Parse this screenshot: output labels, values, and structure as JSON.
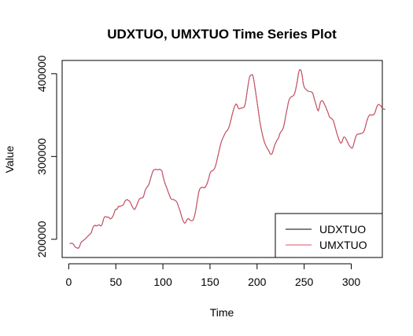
{
  "chart_data": {
    "type": "line",
    "title": "UDXTUO, UMXTUO Time Series Plot",
    "xlabel": "Time",
    "ylabel": "Value",
    "xlim": [
      -7,
      333
    ],
    "ylim": [
      178000,
      416000
    ],
    "xticks": [
      0,
      50,
      100,
      150,
      200,
      250,
      300
    ],
    "yticks": [
      200000,
      300000,
      400000
    ],
    "grid": false,
    "legend": "bottom-right",
    "x_start": 1,
    "series": [
      {
        "name": "UDXTUO",
        "color": "#000000",
        "values": [
          194500,
          195000,
          195500,
          195000,
          194000,
          192000,
          190500,
          190000,
          189500,
          189000,
          190000,
          193000,
          196000,
          197500,
          198000,
          199000,
          200000,
          201000,
          202000,
          203500,
          204500,
          205500,
          206500,
          208000,
          212000,
          215000,
          216500,
          217000,
          216000,
          216500,
          217000,
          217500,
          217000,
          216000,
          217000,
          220000,
          224500,
          227000,
          227500,
          227000,
          226500,
          227000,
          226000,
          224500,
          225000,
          226000,
          228000,
          231000,
          234500,
          236500,
          236000,
          238000,
          240000,
          239500,
          240000,
          240500,
          241000,
          241500,
          244500,
          246500,
          247500,
          248000,
          247000,
          246500,
          245500,
          243000,
          240500,
          238500,
          236500,
          236000,
          238000,
          240500,
          243500,
          246500,
          248500,
          249500,
          250000,
          250000,
          250500,
          254000,
          258500,
          261000,
          263000,
          264000,
          266000,
          269500,
          273500,
          277500,
          281000,
          283500,
          284000,
          284500,
          284500,
          284000,
          284000,
          284500,
          284500,
          283500,
          282500,
          277000,
          272000,
          268500,
          265000,
          262500,
          259000,
          256000,
          253000,
          250000,
          248500,
          248000,
          248000,
          247500,
          247000,
          246000,
          244500,
          241500,
          238000,
          235000,
          231000,
          227000,
          223500,
          221000,
          219500,
          220000,
          222500,
          224500,
          225000,
          224000,
          223000,
          222500,
          222500,
          223000,
          226000,
          230000,
          236000,
          243000,
          250000,
          256500,
          260500,
          262000,
          262500,
          263000,
          262500,
          262000,
          263000,
          265000,
          267500,
          271000,
          275000,
          279500,
          282000,
          282500,
          283000,
          284000,
          286000,
          289000,
          293500,
          298500,
          303500,
          308500,
          313500,
          317500,
          320500,
          323000,
          325500,
          328000,
          330000,
          331000,
          332500,
          335000,
          338500,
          343000,
          348000,
          352500,
          356500,
          360000,
          362500,
          363500,
          361500,
          358500,
          357500,
          358000,
          358500,
          358500,
          359000,
          359500,
          361500,
          367000,
          375000,
          383000,
          390000,
          396000,
          398000,
          398500,
          399000,
          396000,
          389000,
          381500,
          373500,
          366000,
          358000,
          350000,
          342000,
          335500,
          330000,
          325000,
          320500,
          316500,
          314000,
          311500,
          309500,
          307500,
          305500,
          303000,
          302500,
          303500,
          307000,
          311000,
          314500,
          317000,
          319500,
          321000,
          323000,
          327000,
          329500,
          330500,
          332500,
          335500,
          340000,
          346000,
          352500,
          358000,
          364000,
          368500,
          370500,
          372000,
          372500,
          373000,
          374000,
          376500,
          381000,
          386500,
          393000,
          400500,
          404500,
          405000,
          403000,
          397000,
          388000,
          384000,
          382000,
          381000,
          380000,
          379000,
          378500,
          378500,
          378500,
          377500,
          377000,
          373000,
          368500,
          365000,
          361000,
          357000,
          355000,
          359000,
          364500,
          367000,
          367500,
          366500,
          364500,
          362000,
          359500,
          356500,
          354000,
          350500,
          347500,
          346500,
          346000,
          345000,
          343500,
          339500,
          335000,
          331000,
          327000,
          323500,
          320000,
          317500,
          316000,
          317000,
          320500,
          323500,
          323500,
          322000,
          320000,
          317500,
          315000,
          313000,
          311500,
          310500,
          310000,
          312000,
          316500,
          321000,
          324500,
          326500,
          327000,
          327000,
          327500,
          327500,
          328000,
          328500,
          329500,
          332000,
          336000,
          340500,
          344500,
          347500,
          349500,
          350500,
          350000,
          350000,
          350500,
          350500,
          352500,
          356000,
          359500,
          362000,
          363000,
          362500,
          361500,
          360000,
          358500,
          357500,
          357000,
          357000
        ]
      },
      {
        "name": "UMXTUO",
        "color": "#df536b",
        "values": [
          194500,
          195000,
          195500,
          195000,
          194000,
          192000,
          190500,
          190000,
          189500,
          189000,
          190000,
          193000,
          196000,
          197500,
          198000,
          199000,
          200000,
          201000,
          202000,
          203500,
          204500,
          205500,
          206500,
          208000,
          212000,
          215000,
          216500,
          217000,
          216000,
          216500,
          217000,
          217500,
          217000,
          216000,
          217000,
          220000,
          224500,
          227000,
          227500,
          227000,
          226500,
          227000,
          226000,
          224500,
          225000,
          226000,
          228000,
          231000,
          234500,
          236500,
          236000,
          238000,
          240000,
          239500,
          240000,
          240500,
          241000,
          241500,
          244500,
          246500,
          247500,
          248000,
          247000,
          246500,
          245500,
          243000,
          240500,
          238500,
          236500,
          236000,
          238000,
          240500,
          243500,
          246500,
          248500,
          249500,
          250000,
          250000,
          250500,
          254000,
          258500,
          261000,
          263000,
          264000,
          266000,
          269500,
          273500,
          277500,
          281000,
          283500,
          284000,
          284500,
          284500,
          284000,
          284000,
          284500,
          284500,
          283500,
          282500,
          277000,
          272000,
          268500,
          265000,
          262500,
          259000,
          256000,
          253000,
          250000,
          248500,
          248000,
          248000,
          247500,
          247000,
          246000,
          244500,
          241500,
          238000,
          235000,
          231000,
          227000,
          223500,
          221000,
          219500,
          220000,
          222500,
          224500,
          225000,
          224000,
          223000,
          222500,
          222500,
          223000,
          226000,
          230000,
          236000,
          243000,
          250000,
          256500,
          260500,
          262000,
          262500,
          263000,
          262500,
          262000,
          263000,
          265000,
          267500,
          271000,
          275000,
          279500,
          282000,
          282500,
          283000,
          284000,
          286000,
          289000,
          293500,
          298500,
          303500,
          308500,
          313500,
          317500,
          320500,
          323000,
          325500,
          328000,
          330000,
          331000,
          332500,
          335000,
          338500,
          343000,
          348000,
          352500,
          356500,
          360000,
          362500,
          363500,
          361500,
          358500,
          357500,
          358000,
          358500,
          358500,
          359000,
          359500,
          361500,
          367000,
          375000,
          383000,
          390000,
          396000,
          398000,
          398500,
          399000,
          396000,
          389000,
          381500,
          373500,
          366000,
          358000,
          350000,
          342000,
          335500,
          330000,
          325000,
          320500,
          316500,
          314000,
          311500,
          309500,
          307500,
          305500,
          303000,
          302500,
          303500,
          307000,
          311000,
          314500,
          317000,
          319500,
          321000,
          323000,
          327000,
          329500,
          330500,
          332500,
          335500,
          340000,
          346000,
          352500,
          358000,
          364000,
          368500,
          370500,
          372000,
          372500,
          373000,
          374000,
          376500,
          381000,
          386500,
          393000,
          400500,
          404500,
          405000,
          403000,
          397000,
          388000,
          384000,
          382000,
          381000,
          380000,
          379000,
          378500,
          378500,
          378500,
          377500,
          377000,
          373000,
          368500,
          365000,
          361000,
          357000,
          355000,
          359000,
          364500,
          367000,
          367500,
          366500,
          364500,
          362000,
          359500,
          356500,
          354000,
          350500,
          347500,
          346500,
          346000,
          345000,
          343500,
          339500,
          335000,
          331000,
          327000,
          323500,
          320000,
          317500,
          316000,
          317000,
          320500,
          323500,
          323500,
          322000,
          320000,
          317500,
          315000,
          313000,
          311500,
          310500,
          310000,
          312000,
          316500,
          321000,
          324500,
          326500,
          327000,
          327000,
          327500,
          327500,
          328000,
          328500,
          329500,
          332000,
          336000,
          340500,
          344500,
          347500,
          349500,
          350500,
          350000,
          350000,
          350500,
          350500,
          352500,
          356000,
          359500,
          362000,
          363000,
          362500,
          361500,
          360000,
          358500,
          357500,
          357000,
          357000
        ]
      }
    ]
  }
}
